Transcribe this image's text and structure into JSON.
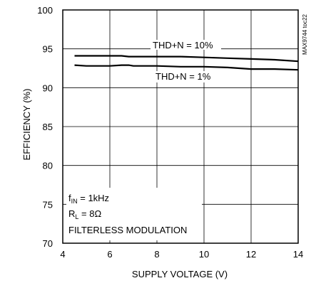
{
  "chart_data": {
    "type": "line",
    "title": "",
    "xlabel": "SUPPLY VOLTAGE (V)",
    "ylabel": "EFFICIENCY (%)",
    "xlim": [
      4,
      14
    ],
    "ylim": [
      70,
      100
    ],
    "xticks": [
      4,
      6,
      8,
      10,
      12,
      14
    ],
    "yticks": [
      70,
      75,
      80,
      85,
      90,
      95,
      100
    ],
    "grid": true,
    "series": [
      {
        "name": "THD+N = 10%",
        "x": [
          4.5,
          5.5,
          6.5,
          6.8,
          8,
          9,
          10,
          11,
          12,
          13,
          14
        ],
        "y": [
          94.1,
          94.1,
          94.1,
          94.0,
          94.0,
          94.0,
          93.9,
          93.8,
          93.7,
          93.6,
          93.4
        ]
      },
      {
        "name": "THD+N = 1%",
        "x": [
          4.5,
          5,
          6,
          6.5,
          6.8,
          7,
          8,
          9,
          10,
          11,
          12,
          13,
          14
        ],
        "y": [
          92.9,
          92.8,
          92.8,
          92.9,
          92.9,
          92.8,
          92.8,
          92.7,
          92.7,
          92.6,
          92.4,
          92.4,
          92.3
        ]
      }
    ],
    "annotations": {
      "conditions_fin": "f",
      "conditions_fin_sub": "IN",
      "conditions_fin_val": " = 1kHz",
      "conditions_rl": "R",
      "conditions_rl_sub": "L",
      "conditions_rl_val": " = 8Ω",
      "conditions_mod": "FILTERLESS MODULATION",
      "figure_code": "MAX9744 toc22"
    }
  }
}
